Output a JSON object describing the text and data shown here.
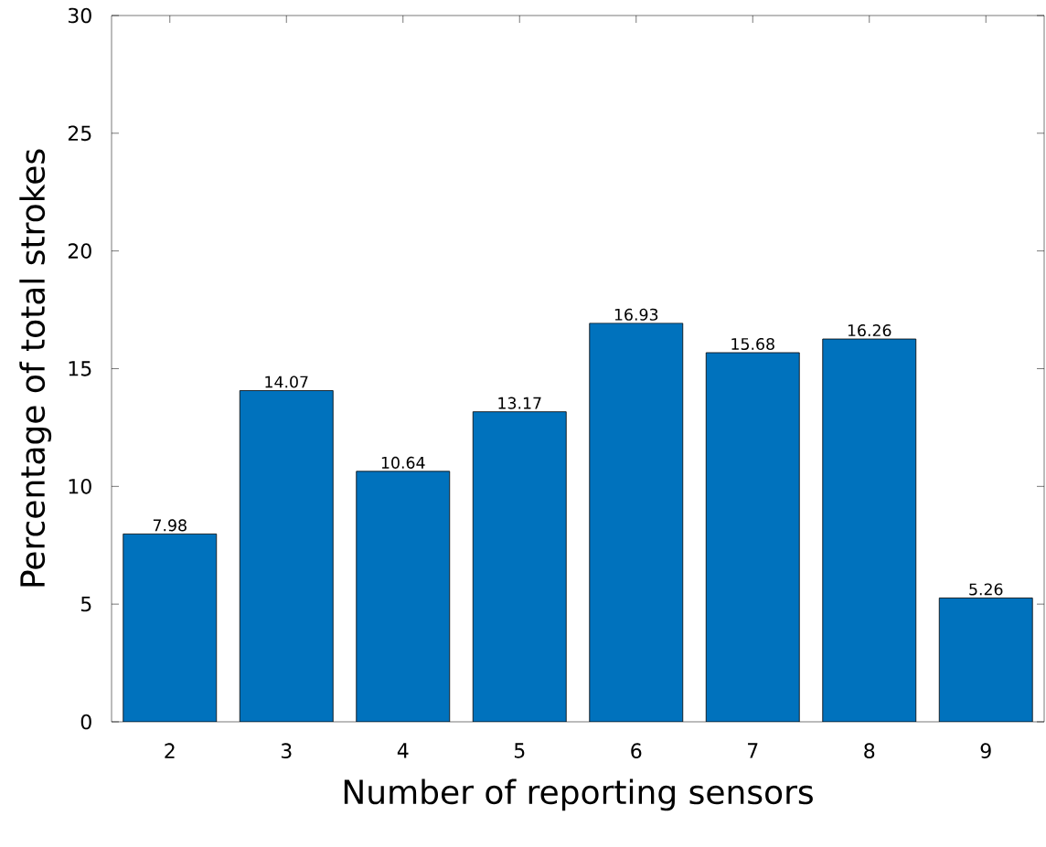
{
  "chart_data": {
    "type": "bar",
    "xlabel": "Number of reporting sensors",
    "ylabel": "Percentage of total strokes",
    "categories": [
      "2",
      "3",
      "4",
      "5",
      "6",
      "7",
      "8",
      "9"
    ],
    "values": [
      7.98,
      14.07,
      10.64,
      13.17,
      16.93,
      15.68,
      16.26,
      5.26
    ],
    "color": "#0072bd",
    "data_labels": true,
    "ylim": [
      0,
      30
    ],
    "yticks": [
      0,
      5,
      10,
      15,
      20,
      25,
      30
    ]
  }
}
